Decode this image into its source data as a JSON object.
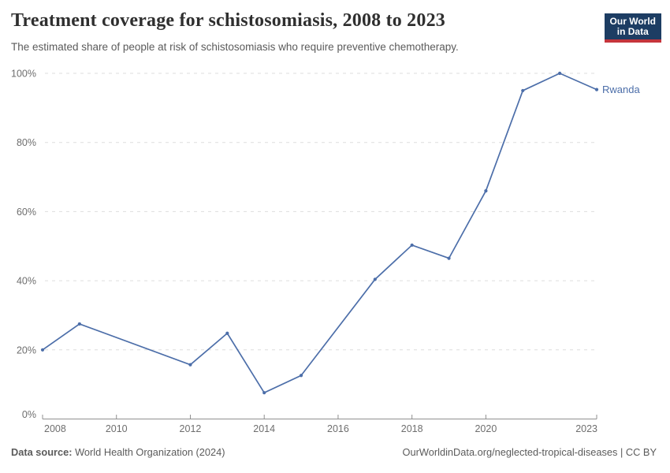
{
  "header": {
    "title": "Treatment coverage for schistosomiasis, 2008 to 2023",
    "subtitle": "The estimated share of people at risk of schistosomiasis who require preventive chemotherapy."
  },
  "logo": {
    "line1": "Our World",
    "line2": "in Data",
    "bg_color": "#1d3d63",
    "accent_color": "#c5353c"
  },
  "chart_data": {
    "type": "line",
    "title": "Treatment coverage for schistosomiasis, 2008 to 2023",
    "xlabel": "",
    "ylabel": "",
    "xlim": [
      2008,
      2023
    ],
    "ylim": [
      0,
      100
    ],
    "xticks": [
      2008,
      2010,
      2012,
      2014,
      2016,
      2018,
      2020,
      2023
    ],
    "yticks": [
      0,
      20,
      40,
      60,
      80,
      100
    ],
    "ytick_format": "{}%",
    "grid": "horizontal-dashed",
    "legend_position": "end-of-line-label",
    "series": [
      {
        "name": "Rwanda",
        "color": "#4c6ea9",
        "points": [
          {
            "x": 2008,
            "y": 20
          },
          {
            "x": 2009,
            "y": 27.5
          },
          {
            "x": 2012,
            "y": 15.7
          },
          {
            "x": 2013,
            "y": 24.8
          },
          {
            "x": 2014,
            "y": 7.6
          },
          {
            "x": 2015,
            "y": 12.6
          },
          {
            "x": 2017,
            "y": 40.4
          },
          {
            "x": 2018,
            "y": 50.3
          },
          {
            "x": 2019,
            "y": 46.5
          },
          {
            "x": 2020,
            "y": 66
          },
          {
            "x": 2021,
            "y": 95
          },
          {
            "x": 2022,
            "y": 100
          },
          {
            "x": 2023,
            "y": 95.3
          }
        ]
      }
    ]
  },
  "colors": {
    "line": "#4c6ea9",
    "grid": "#dedede",
    "axis": "#8f8f8f",
    "tick_label": "#6e6e6e"
  },
  "footer": {
    "source_label": "Data source:",
    "source_text": " World Health Organization (2024)",
    "link_text": "OurWorldinData.org/neglected-tropical-diseases | CC BY"
  }
}
